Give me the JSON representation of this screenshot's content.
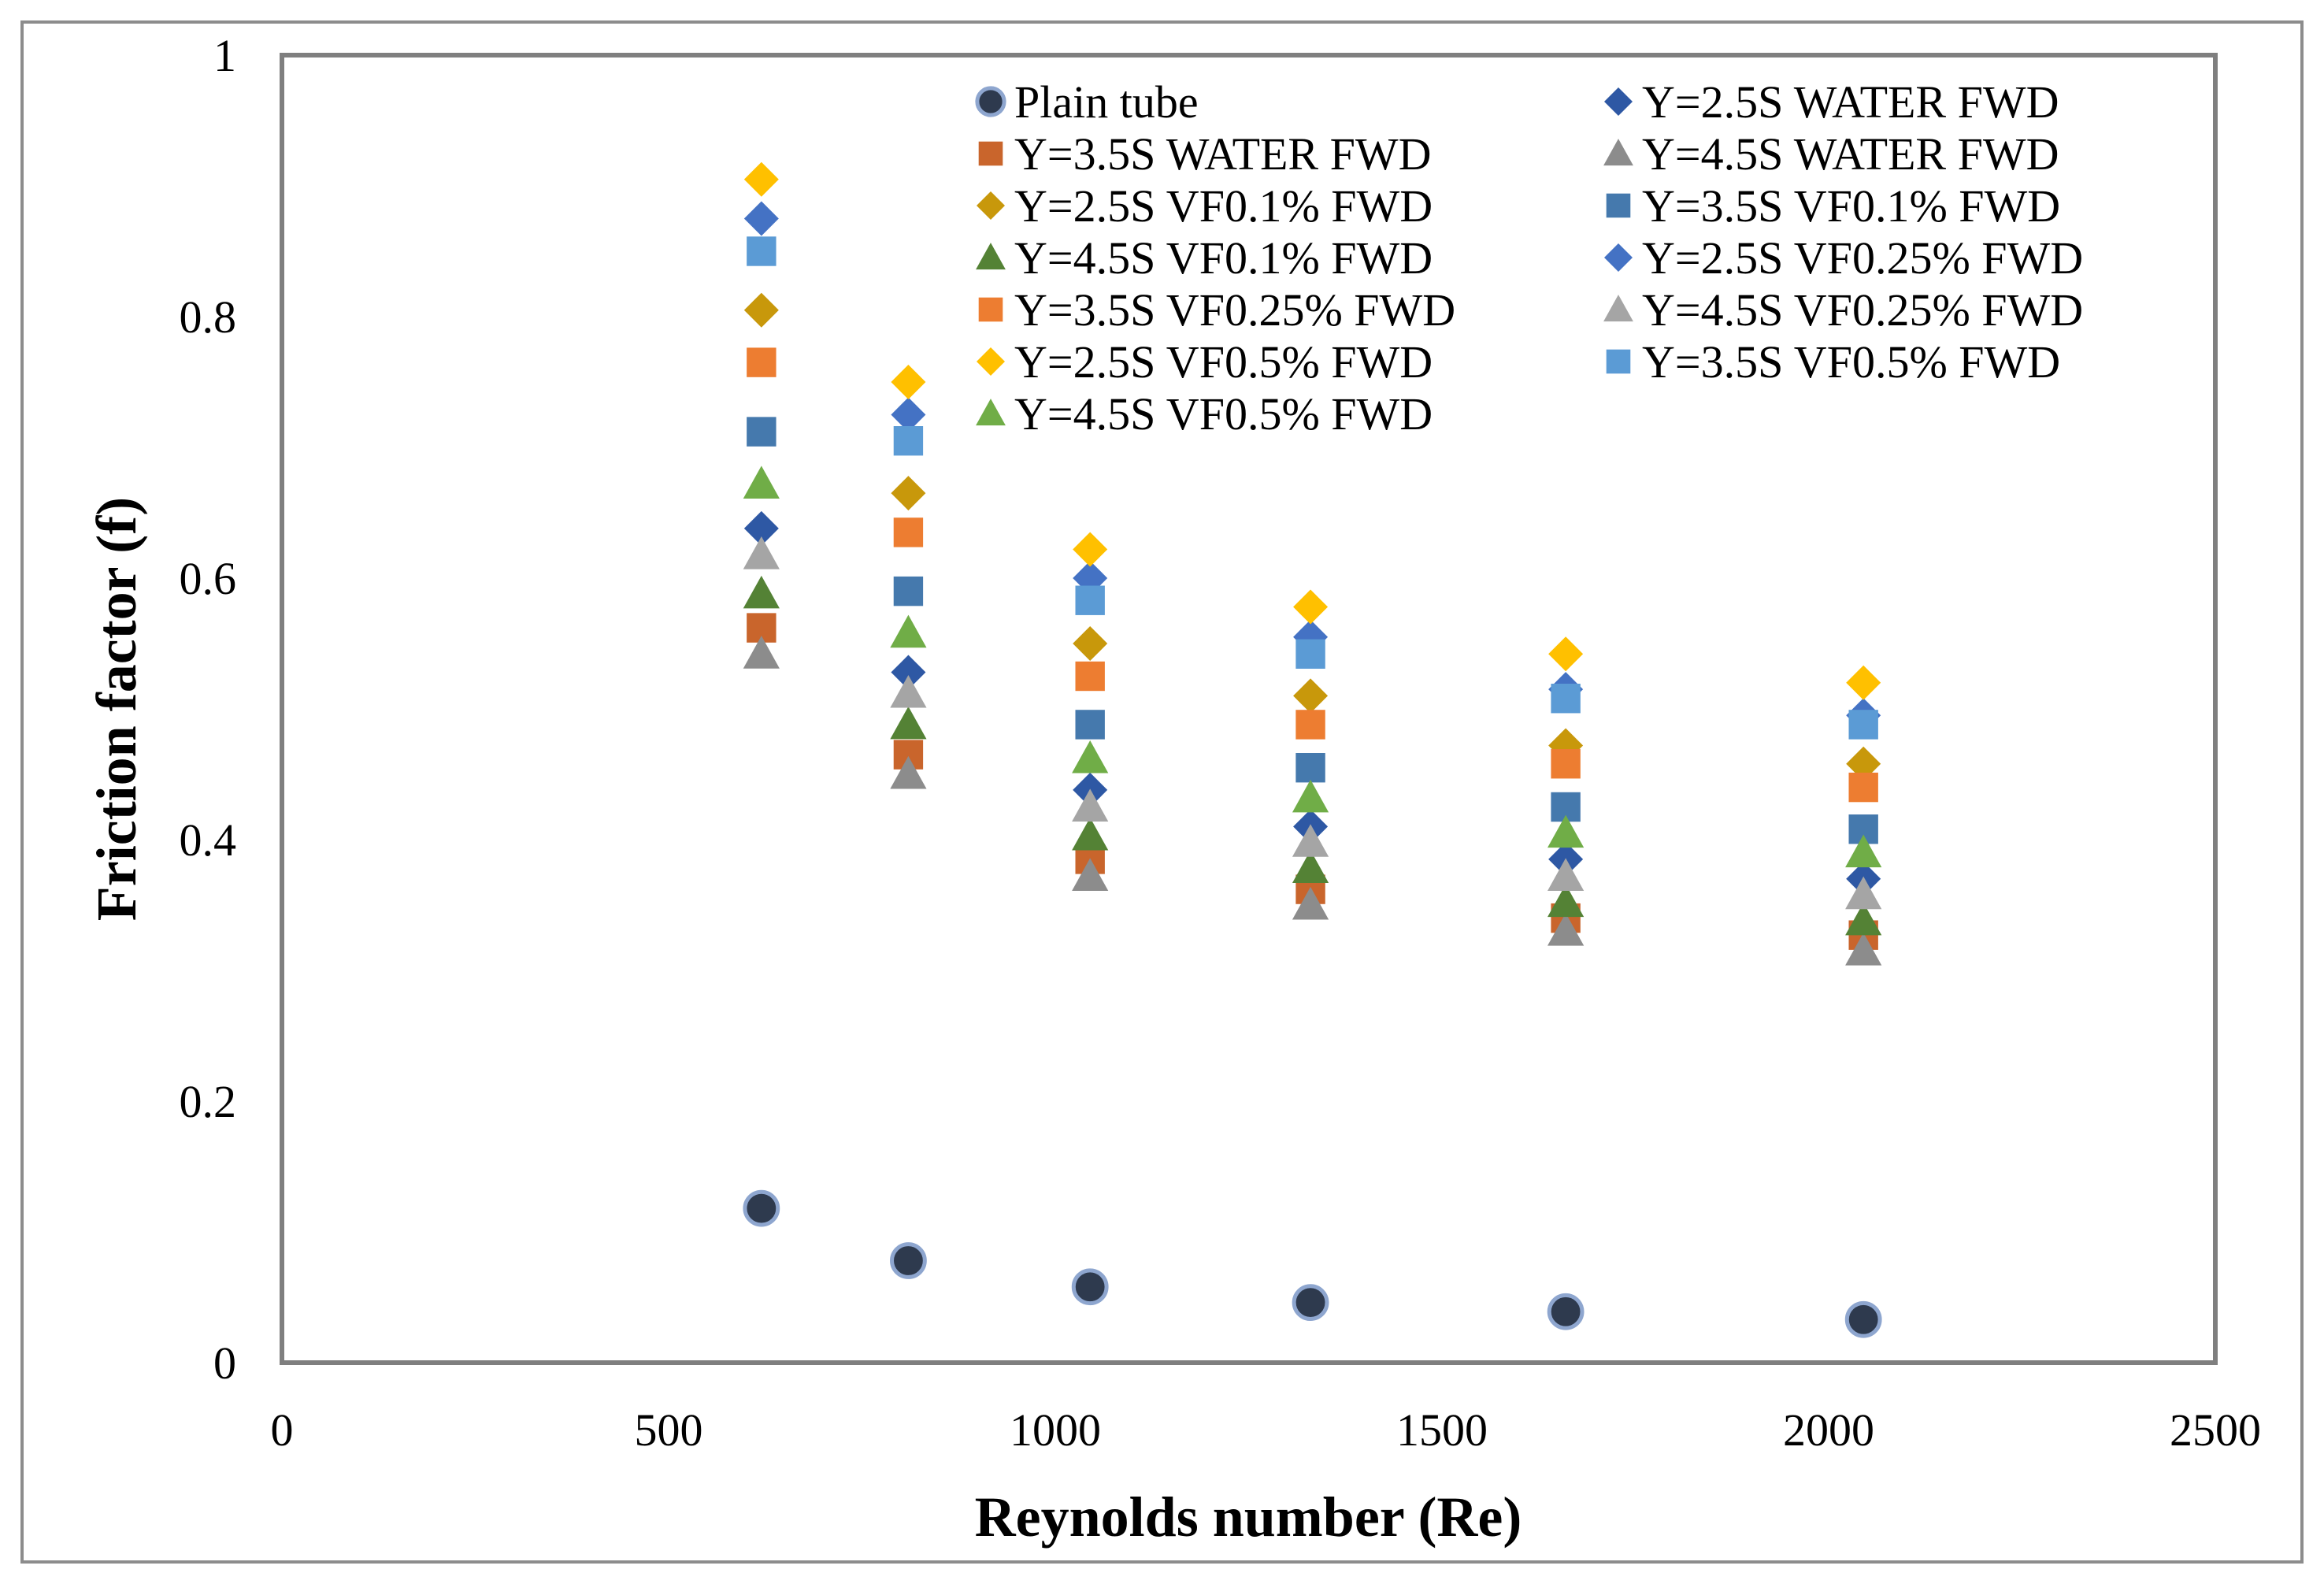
{
  "chart_data": {
    "type": "scatter",
    "title": "",
    "xlabel": "Reynolds number (Re)",
    "ylabel": "Friction factor (f)",
    "xlim": [
      0,
      2500
    ],
    "ylim": [
      0,
      1
    ],
    "xticks": [
      0,
      500,
      1000,
      1500,
      2000,
      2500
    ],
    "yticks": [
      0,
      0.2,
      0.4,
      0.6,
      0.8,
      1
    ],
    "xtick_labels": [
      "0",
      "500",
      "1000",
      "1500",
      "2000",
      "2500"
    ],
    "ytick_labels": [
      "0",
      "0.2",
      "0.4",
      "0.6",
      "0.8",
      "1"
    ],
    "grid": false,
    "legend_position": "top-right",
    "x": [
      620,
      810,
      1045,
      1330,
      1660,
      2045
    ],
    "series": [
      {
        "name": "Plain tube",
        "marker": "circle",
        "color": "#2e3a4e",
        "values": [
          0.118,
          0.078,
          0.058,
          0.046,
          0.039,
          0.033
        ]
      },
      {
        "name": "Y=2.5S WATER FWD",
        "marker": "diamond",
        "color": "#2e58a4",
        "values": [
          0.638,
          0.528,
          0.438,
          0.41,
          0.385,
          0.37
        ]
      },
      {
        "name": "Y=3.5S WATER FWD",
        "marker": "square",
        "color": "#c9652c",
        "values": [
          0.562,
          0.465,
          0.385,
          0.362,
          0.34,
          0.327
        ]
      },
      {
        "name": "Y=4.5S WATER FWD",
        "marker": "triangle",
        "color": "#8c8c8c",
        "values": [
          0.542,
          0.45,
          0.372,
          0.35,
          0.33,
          0.315
        ]
      },
      {
        "name": "Y=2.5S VF0.1% FWD",
        "marker": "diamond",
        "color": "#c8980b",
        "values": [
          0.805,
          0.665,
          0.55,
          0.51,
          0.472,
          0.458
        ]
      },
      {
        "name": "Y=3.5S VF0.1% FWD",
        "marker": "square",
        "color": "#4579ad",
        "values": [
          0.712,
          0.59,
          0.488,
          0.455,
          0.425,
          0.408
        ]
      },
      {
        "name": "Y=4.5S VF0.1% FWD",
        "marker": "triangle",
        "color": "#548235",
        "values": [
          0.588,
          0.488,
          0.403,
          0.378,
          0.352,
          0.338
        ]
      },
      {
        "name": "Y=2.5S VF0.25% FWD",
        "marker": "diamond",
        "color": "#4472c4",
        "values": [
          0.875,
          0.725,
          0.6,
          0.555,
          0.515,
          0.495
        ]
      },
      {
        "name": "Y=3.5S VF0.25% FWD",
        "marker": "square",
        "color": "#ed7d31",
        "values": [
          0.765,
          0.635,
          0.525,
          0.488,
          0.458,
          0.44
        ]
      },
      {
        "name": "Y=4.5S VF0.25% FWD",
        "marker": "triangle",
        "color": "#a5a5a5",
        "values": [
          0.618,
          0.512,
          0.425,
          0.398,
          0.372,
          0.358
        ]
      },
      {
        "name": "Y=2.5S VF0.5% FWD",
        "marker": "diamond",
        "color": "#ffc000",
        "values": [
          0.905,
          0.75,
          0.622,
          0.578,
          0.542,
          0.52
        ]
      },
      {
        "name": "Y=3.5S VF0.5% FWD",
        "marker": "square",
        "color": "#5b9bd5",
        "values": [
          0.85,
          0.705,
          0.583,
          0.542,
          0.508,
          0.488
        ]
      },
      {
        "name": "Y=4.5S VF0.5% FWD",
        "marker": "triangle",
        "color": "#70ad47",
        "values": [
          0.672,
          0.558,
          0.462,
          0.432,
          0.405,
          0.39
        ]
      }
    ]
  }
}
